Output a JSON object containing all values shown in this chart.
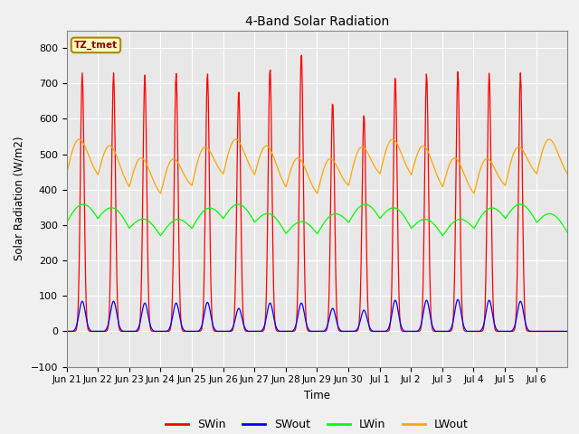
{
  "title": "4-Band Solar Radiation",
  "xlabel": "Time",
  "ylabel": "Solar Radiation (W/m2)",
  "ylim": [
    -100,
    850
  ],
  "yticks": [
    -100,
    0,
    100,
    200,
    300,
    400,
    500,
    600,
    700,
    800
  ],
  "legend_label": "TZ_tmet",
  "line_colors": {
    "SWin": "#FF0000",
    "SWout": "#0000FF",
    "LWin": "#00FF00",
    "LWout": "#FFA500"
  },
  "background_color": "#F0F0F0",
  "plot_bg_color": "#E8E8E8",
  "tick_labels": [
    "Jun 21",
    "Jun 22",
    "Jun 23",
    "Jun 24",
    "Jun 25",
    "Jun 26",
    "Jun 27",
    "Jun 28",
    "Jun 29",
    "Jun 30",
    "Jul 1",
    "Jul 2",
    "Jul 3",
    "Jul 4",
    "Jul 5",
    "Jul 6"
  ],
  "SWin_peaks": [
    730,
    730,
    725,
    730,
    730,
    680,
    745,
    790,
    650,
    615,
    720,
    730,
    735,
    730,
    730,
    0
  ],
  "SWout_peaks": [
    85,
    85,
    80,
    80,
    82,
    65,
    80,
    80,
    65,
    60,
    88,
    88,
    90,
    88,
    85,
    0
  ],
  "LWin_base": 295,
  "LWout_base": 425
}
